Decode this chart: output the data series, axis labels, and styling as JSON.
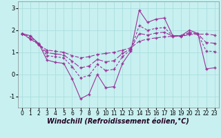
{
  "title": "",
  "xlabel": "Windchill (Refroidissement éolien,°C)",
  "background_color": "#c8f0f0",
  "line_color": "#993399",
  "grid_color": "#aadddd",
  "xlim": [
    -0.5,
    23.5
  ],
  "ylim": [
    -1.5,
    3.3
  ],
  "yticks": [
    -1,
    0,
    1,
    2,
    3
  ],
  "xticks": [
    0,
    1,
    2,
    3,
    4,
    5,
    6,
    7,
    8,
    9,
    10,
    11,
    12,
    13,
    14,
    15,
    16,
    17,
    18,
    19,
    20,
    21,
    22,
    23
  ],
  "line1_x": [
    0,
    1,
    2,
    3,
    4,
    5,
    6,
    7,
    8,
    9,
    10,
    11,
    12,
    13,
    14,
    15,
    16,
    17,
    18,
    19,
    20,
    21,
    22,
    23
  ],
  "line1_y": [
    1.85,
    1.75,
    1.4,
    0.65,
    0.55,
    0.5,
    -0.2,
    -1.1,
    -0.9,
    0.0,
    -0.6,
    -0.55,
    0.5,
    1.05,
    2.9,
    2.35,
    2.5,
    2.55,
    1.75,
    1.75,
    2.0,
    1.85,
    0.25,
    0.3
  ],
  "line2_x": [
    0,
    1,
    2,
    3,
    4,
    5,
    6,
    7,
    8,
    9,
    10,
    11,
    12,
    13,
    14,
    15,
    16,
    17,
    18,
    19,
    20,
    21,
    22,
    23
  ],
  "line2_y": [
    1.85,
    1.6,
    1.35,
    1.1,
    1.05,
    1.0,
    0.85,
    0.75,
    0.8,
    0.9,
    0.95,
    1.0,
    1.1,
    1.2,
    1.5,
    1.6,
    1.65,
    1.7,
    1.72,
    1.72,
    1.8,
    1.82,
    1.82,
    1.78
  ],
  "line3_x": [
    0,
    1,
    2,
    3,
    4,
    5,
    6,
    7,
    8,
    9,
    10,
    11,
    12,
    13,
    14,
    15,
    16,
    17,
    18,
    19,
    20,
    21,
    22,
    23
  ],
  "line3_y": [
    1.85,
    1.7,
    1.38,
    0.85,
    0.8,
    0.75,
    0.35,
    -0.15,
    -0.05,
    0.45,
    0.18,
    0.23,
    0.8,
    1.12,
    2.2,
    2.0,
    2.08,
    2.12,
    1.74,
    1.74,
    1.9,
    1.84,
    1.05,
    1.04
  ],
  "line4_x": [
    0,
    1,
    2,
    3,
    4,
    5,
    6,
    7,
    8,
    9,
    10,
    11,
    12,
    13,
    14,
    15,
    16,
    17,
    18,
    19,
    20,
    21,
    22,
    23
  ],
  "line4_y": [
    1.85,
    1.62,
    1.37,
    0.98,
    0.93,
    0.88,
    0.6,
    0.3,
    0.38,
    0.68,
    0.57,
    0.62,
    0.95,
    1.16,
    1.85,
    1.78,
    1.87,
    1.91,
    1.73,
    1.73,
    1.85,
    1.83,
    1.44,
    1.41
  ],
  "font_size": 7,
  "tick_font_size": 5.5,
  "marker": "+"
}
